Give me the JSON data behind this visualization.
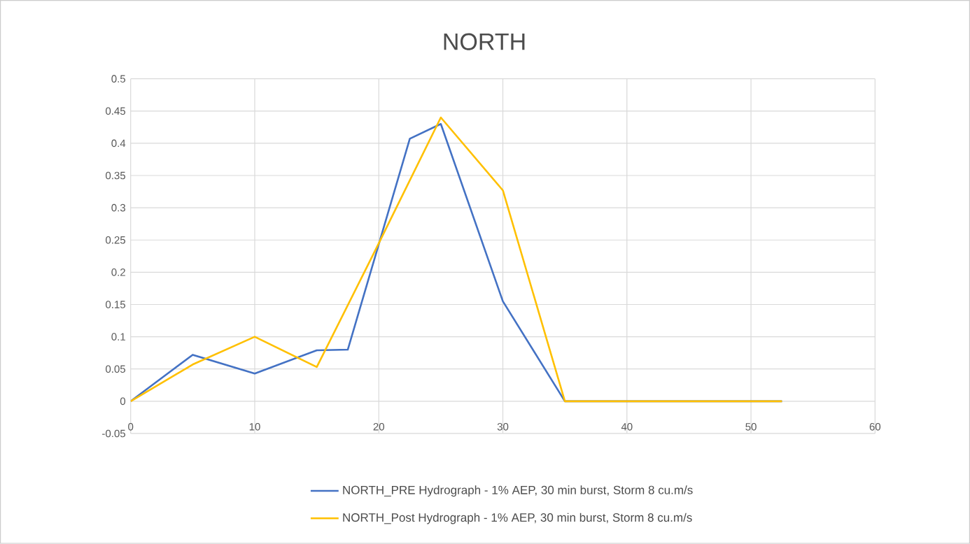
{
  "chart_data": {
    "type": "line",
    "title": "NORTH",
    "series": [
      {
        "name": "NORTH_PRE Hydrograph - 1% AEP, 30 min burst, Storm 8 cu.m/s",
        "color": "#4472c4",
        "x": [
          0,
          5,
          10,
          15,
          17.5,
          22.5,
          25,
          30,
          35,
          52.5
        ],
        "values": [
          0,
          0.072,
          0.043,
          0.079,
          0.08,
          0.407,
          0.43,
          0.155,
          0,
          0
        ]
      },
      {
        "name": "NORTH_Post Hydrograph - 1% AEP, 30 min burst, Storm 8 cu.m/s",
        "color": "#ffc000",
        "x": [
          0,
          5,
          10,
          15,
          20,
          25,
          30,
          35,
          52.5
        ],
        "values": [
          0,
          0.057,
          0.1,
          0.053,
          0.245,
          0.44,
          0.327,
          0,
          0
        ]
      }
    ],
    "xlim": [
      0,
      60
    ],
    "xticks": [
      0,
      10,
      20,
      30,
      40,
      50,
      60
    ],
    "ylim": [
      -0.05,
      0.5
    ],
    "yticks": [
      -0.05,
      0,
      0.05,
      0.1,
      0.15,
      0.2,
      0.25,
      0.3,
      0.35,
      0.4,
      0.45,
      0.5
    ],
    "grid": true,
    "legend": "bottom",
    "marker": "none",
    "line_style": "solid"
  }
}
